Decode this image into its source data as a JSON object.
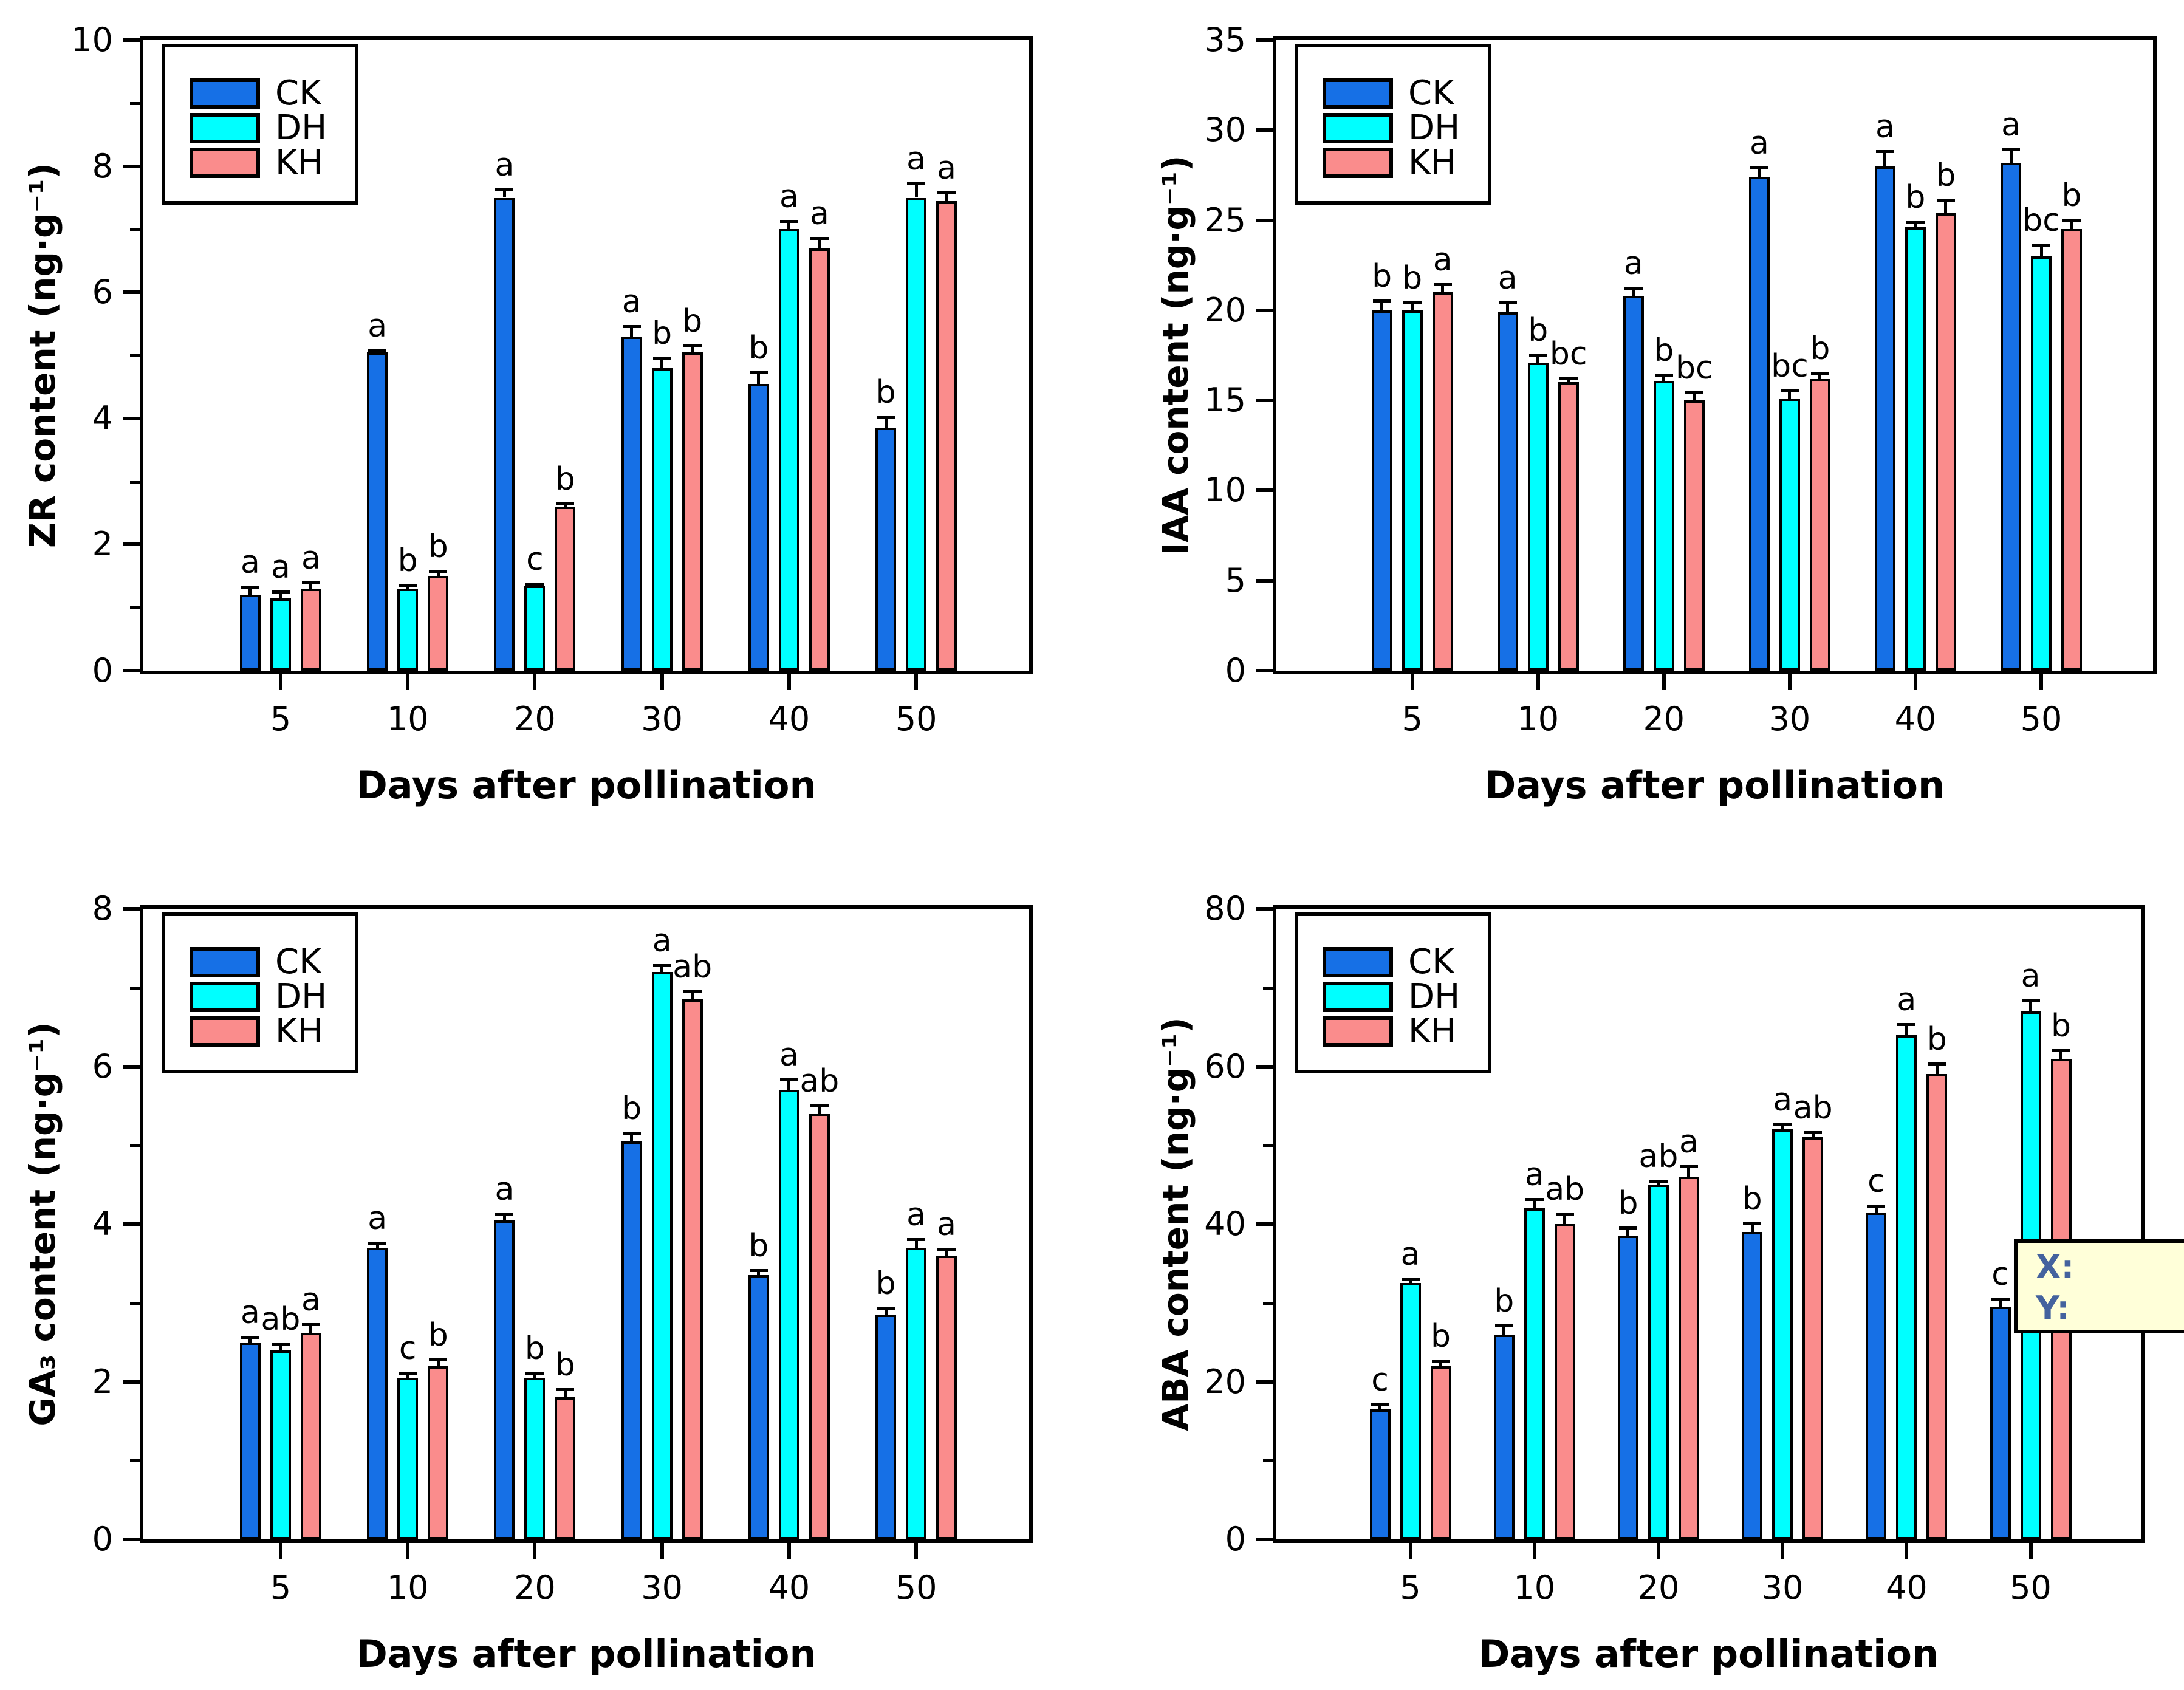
{
  "figure": {
    "x_axis_label": "Days after pollination",
    "legend_labels": [
      "CK",
      "DH",
      "KH"
    ],
    "series_colors": {
      "CK": "#1670e6",
      "DH": "#00ffff",
      "KH": "#fa8c8c"
    },
    "axis_color": "#000000"
  },
  "tooltip": {
    "line1": "X:",
    "line2": "Y:",
    "bg_color": "#ffffd9",
    "text_color": "#44629e"
  },
  "chart_data": [
    {
      "id": "zr",
      "type": "bar",
      "title": "",
      "ylabel": "ZR content (ng·g⁻¹)",
      "xlabel": "Days after pollination",
      "ylim": [
        0,
        10
      ],
      "ytick_major": 2,
      "ytick_minor": 1,
      "grid": false,
      "legend_position": "top-left",
      "categories": [
        "5",
        "10",
        "20",
        "30",
        "40",
        "50"
      ],
      "series": [
        {
          "name": "CK",
          "color": "#1670e6",
          "values": [
            1.2,
            5.05,
            7.5,
            5.3,
            4.55,
            3.85
          ],
          "errors": [
            0.15,
            0.05,
            0.15,
            0.18,
            0.2,
            0.2
          ],
          "sig_letters": [
            "a",
            "a",
            "a",
            "a",
            "b",
            "b"
          ]
        },
        {
          "name": "DH",
          "color": "#00ffff",
          "values": [
            1.15,
            1.3,
            1.35,
            4.8,
            7.0,
            7.5
          ],
          "errors": [
            0.12,
            0.08,
            0.05,
            0.18,
            0.15,
            0.25
          ],
          "sig_letters": [
            "a",
            "b",
            "c",
            "b",
            "a",
            "a"
          ]
        },
        {
          "name": "KH",
          "color": "#fa8c8c",
          "values": [
            1.3,
            1.5,
            2.6,
            5.05,
            6.7,
            7.45
          ],
          "errors": [
            0.12,
            0.1,
            0.07,
            0.12,
            0.18,
            0.15
          ],
          "sig_letters": [
            "a",
            "b",
            "b",
            "b",
            "a",
            "a"
          ]
        }
      ]
    },
    {
      "id": "iaa",
      "type": "bar",
      "title": "",
      "ylabel": "IAA content (ng·g⁻¹)",
      "xlabel": "Days after pollination",
      "ylim": [
        0,
        35
      ],
      "ytick_major": 5,
      "ytick_minor": null,
      "grid": false,
      "legend_position": "top-left",
      "categories": [
        "5",
        "10",
        "20",
        "30",
        "40",
        "50"
      ],
      "series": [
        {
          "name": "CK",
          "color": "#1670e6",
          "values": [
            20.0,
            19.9,
            20.8,
            27.4,
            28.0,
            28.2
          ],
          "errors": [
            0.6,
            0.6,
            0.5,
            0.6,
            0.9,
            0.8
          ],
          "sig_letters": [
            "b",
            "a",
            "a",
            "a",
            "a",
            "a"
          ]
        },
        {
          "name": "DH",
          "color": "#00ffff",
          "values": [
            20.0,
            17.1,
            16.1,
            15.1,
            24.6,
            23.0
          ],
          "errors": [
            0.5,
            0.5,
            0.4,
            0.5,
            0.4,
            0.7
          ],
          "sig_letters": [
            "b",
            "b",
            "b",
            "bc",
            "b",
            "bc"
          ]
        },
        {
          "name": "KH",
          "color": "#fa8c8c",
          "values": [
            21.0,
            16.0,
            15.0,
            16.2,
            25.4,
            24.5
          ],
          "errors": [
            0.5,
            0.3,
            0.5,
            0.4,
            0.8,
            0.6
          ],
          "sig_letters": [
            "a",
            "bc",
            "bc",
            "b",
            "b",
            "b"
          ]
        }
      ]
    },
    {
      "id": "ga3",
      "type": "bar",
      "title": "",
      "ylabel": "GA₃ content (ng·g⁻¹)",
      "xlabel": "Days after pollination",
      "ylim": [
        0,
        8
      ],
      "ytick_major": 2,
      "ytick_minor": 1,
      "grid": false,
      "legend_position": "top-left",
      "categories": [
        "5",
        "10",
        "20",
        "30",
        "40",
        "50"
      ],
      "series": [
        {
          "name": "CK",
          "color": "#1670e6",
          "values": [
            2.5,
            3.7,
            4.05,
            5.05,
            3.35,
            2.85
          ],
          "errors": [
            0.08,
            0.08,
            0.1,
            0.12,
            0.08,
            0.1
          ],
          "sig_letters": [
            "a",
            "a",
            "a",
            "b",
            "b",
            "b"
          ]
        },
        {
          "name": "DH",
          "color": "#00ffff",
          "values": [
            2.4,
            2.05,
            2.05,
            7.2,
            5.7,
            3.7
          ],
          "errors": [
            0.1,
            0.08,
            0.08,
            0.1,
            0.15,
            0.12
          ],
          "sig_letters": [
            "ab",
            "c",
            "b",
            "a",
            "a",
            "a"
          ]
        },
        {
          "name": "KH",
          "color": "#fa8c8c",
          "values": [
            2.62,
            2.2,
            1.8,
            6.85,
            5.4,
            3.6
          ],
          "errors": [
            0.12,
            0.1,
            0.12,
            0.12,
            0.12,
            0.1
          ],
          "sig_letters": [
            "a",
            "b",
            "b",
            "ab",
            "ab",
            "a"
          ]
        }
      ]
    },
    {
      "id": "aba",
      "type": "bar",
      "title": "",
      "ylabel": "ABA content (ng·g⁻¹)",
      "xlabel": "Days after pollination",
      "ylim": [
        0,
        80
      ],
      "ytick_major": 20,
      "ytick_minor": 10,
      "grid": false,
      "legend_position": "top-left",
      "categories": [
        "5",
        "10",
        "20",
        "30",
        "40",
        "50"
      ],
      "series": [
        {
          "name": "CK",
          "color": "#1670e6",
          "values": [
            16.5,
            26.0,
            38.5,
            39.0,
            41.5,
            29.5
          ],
          "errors": [
            0.8,
            1.3,
            1.2,
            1.2,
            1.0,
            1.2
          ],
          "sig_letters": [
            "c",
            "b",
            "b",
            "b",
            "c",
            "c"
          ]
        },
        {
          "name": "DH",
          "color": "#00ffff",
          "values": [
            32.5,
            42.0,
            45.0,
            52.0,
            64.0,
            67.0
          ],
          "errors": [
            0.7,
            1.3,
            0.6,
            0.8,
            1.5,
            1.5
          ],
          "sig_letters": [
            "a",
            "a",
            "ab",
            "a",
            "a",
            "a"
          ]
        },
        {
          "name": "KH",
          "color": "#fa8c8c",
          "values": [
            22.0,
            40.0,
            46.0,
            51.0,
            59.0,
            61.0
          ],
          "errors": [
            0.8,
            1.5,
            1.5,
            0.8,
            1.5,
            1.2
          ],
          "sig_letters": [
            "b",
            "ab",
            "a",
            "ab",
            "b",
            "b"
          ]
        }
      ]
    }
  ]
}
